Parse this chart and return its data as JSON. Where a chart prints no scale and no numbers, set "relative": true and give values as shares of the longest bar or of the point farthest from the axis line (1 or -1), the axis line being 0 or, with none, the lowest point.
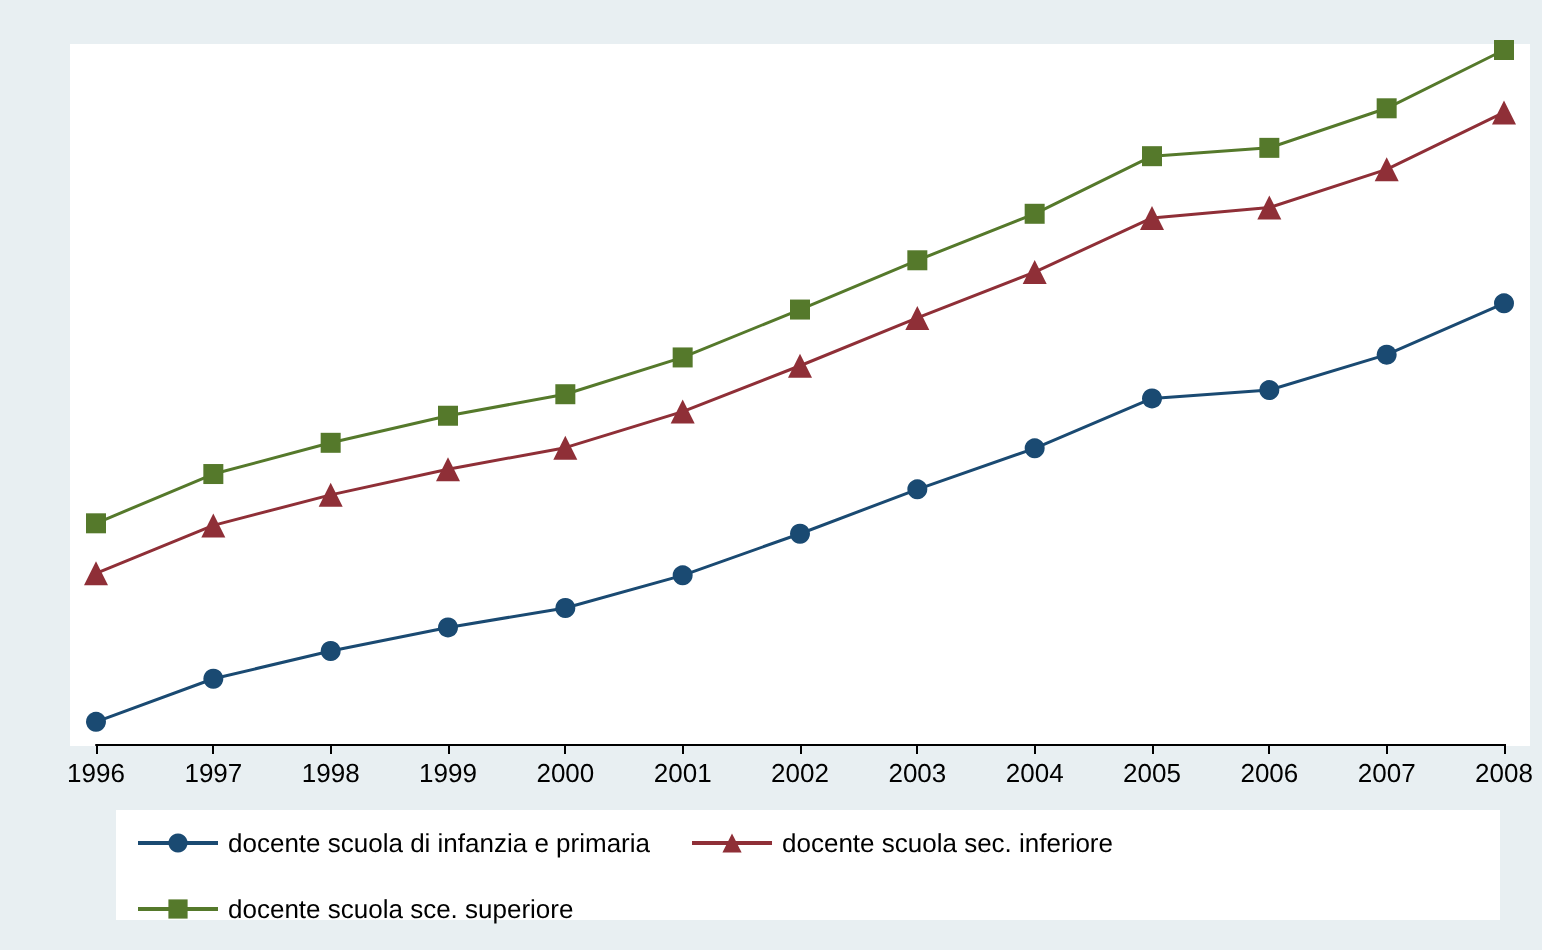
{
  "chart_data": {
    "type": "line",
    "relative": true,
    "grid": false,
    "legend": "bottom",
    "categories": [
      "1996",
      "1997",
      "1998",
      "1999",
      "2000",
      "2001",
      "2002",
      "2003",
      "2004",
      "2005",
      "2006",
      "2007",
      "2008"
    ],
    "series": [
      {
        "name": "docente scuola di infanzia e primaria",
        "color": "#1a4a72",
        "marker": "circle",
        "values": [
          0.032,
          0.094,
          0.134,
          0.168,
          0.196,
          0.243,
          0.303,
          0.367,
          0.426,
          0.498,
          0.51,
          0.561,
          0.635
        ]
      },
      {
        "name": "docente scuola sec. inferiore",
        "color": "#8f2f37",
        "marker": "triangle",
        "values": [
          0.246,
          0.315,
          0.359,
          0.396,
          0.427,
          0.479,
          0.545,
          0.614,
          0.68,
          0.758,
          0.773,
          0.828,
          0.91
        ]
      },
      {
        "name": "docente scuola sce. superiore",
        "color": "#55792b",
        "marker": "square",
        "values": [
          0.318,
          0.389,
          0.434,
          0.473,
          0.504,
          0.557,
          0.626,
          0.697,
          0.764,
          0.847,
          0.859,
          0.916,
          1
        ]
      }
    ]
  }
}
